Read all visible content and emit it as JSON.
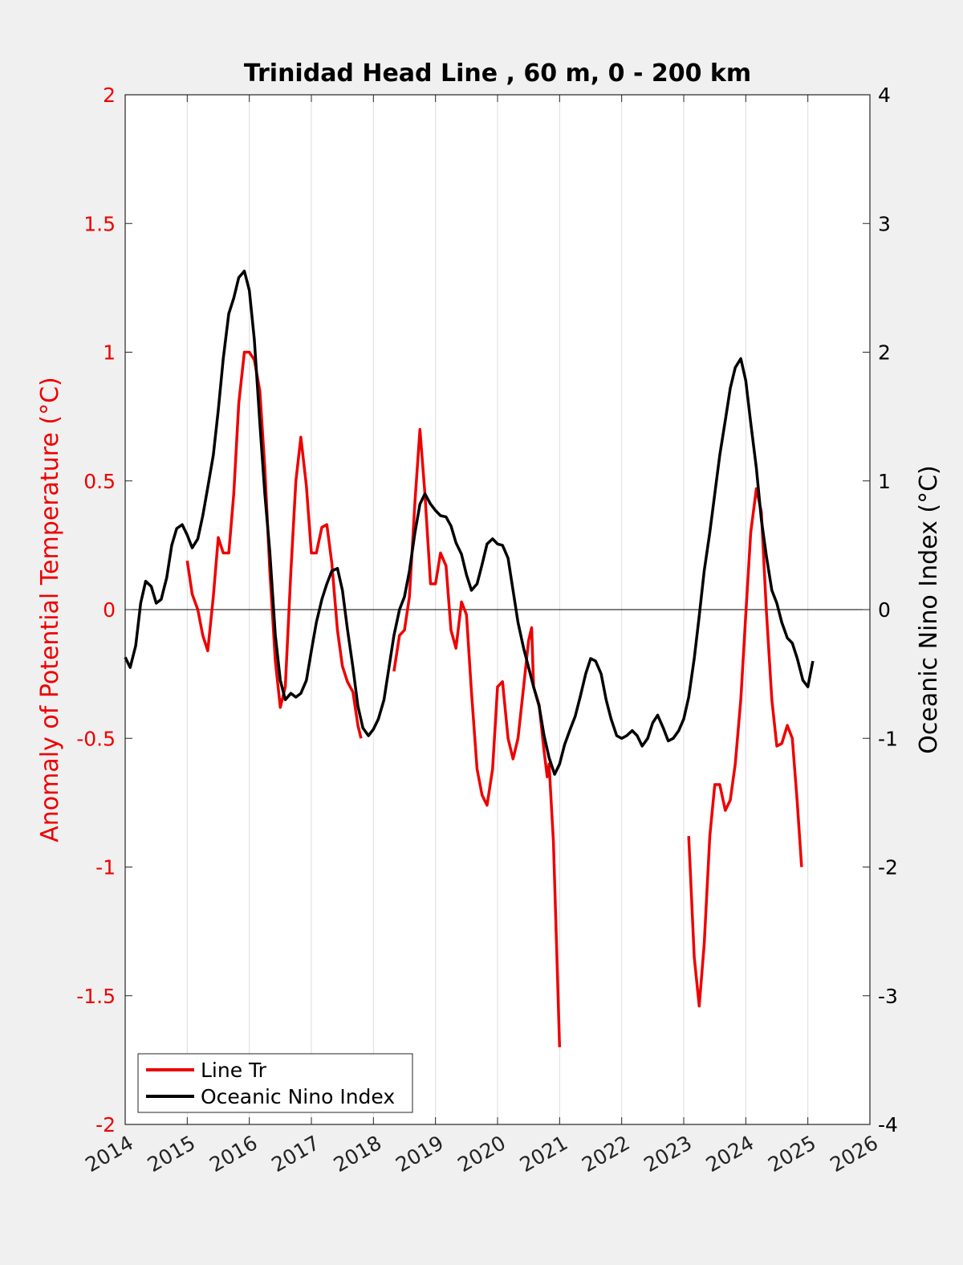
{
  "chart_data": {
    "type": "line",
    "title": "Trinidad Head Line , 60 m, 0 - 200 km",
    "x_range": [
      2014,
      2026
    ],
    "x_ticks": [
      "2014",
      "2015",
      "2016",
      "2017",
      "2018",
      "2019",
      "2020",
      "2021",
      "2022",
      "2023",
      "2024",
      "2025",
      "2026"
    ],
    "y_left": {
      "label": "Anomaly of Potential Temperature (°C)",
      "range": [
        -2,
        2
      ],
      "ticks": [
        "2",
        "1.5",
        "1",
        "0.5",
        "0",
        "-0.5",
        "-1",
        "-1.5",
        "-2"
      ],
      "color": "#ee0000"
    },
    "y_right": {
      "label": "Oceanic Nino Index (°C)",
      "range": [
        -4,
        4
      ],
      "ticks": [
        "4",
        "3",
        "2",
        "1",
        "0",
        "-1",
        "-2",
        "-3",
        "-4"
      ],
      "color": "#000000"
    },
    "grid": "vertical",
    "zero_line": true,
    "legend": {
      "position": "bottom-left",
      "entries": [
        {
          "label": "Line Tr",
          "color": "#ee0000"
        },
        {
          "label": "Oceanic Nino Index",
          "color": "#000000"
        }
      ]
    },
    "series": [
      {
        "name": "Line Tr",
        "axis": "left",
        "color": "#ee0000",
        "segments": [
          [
            [
              2015.0,
              0.19
            ],
            [
              2015.08,
              0.06
            ],
            [
              2015.17,
              0.0
            ],
            [
              2015.25,
              -0.1
            ],
            [
              2015.33,
              -0.16
            ],
            [
              2015.42,
              0.05
            ],
            [
              2015.5,
              0.28
            ],
            [
              2015.58,
              0.22
            ],
            [
              2015.67,
              0.22
            ],
            [
              2015.75,
              0.45
            ],
            [
              2015.83,
              0.8
            ],
            [
              2015.92,
              1.0
            ],
            [
              2016.0,
              1.0
            ],
            [
              2016.08,
              0.97
            ],
            [
              2016.17,
              0.85
            ],
            [
              2016.25,
              0.55
            ],
            [
              2016.33,
              0.15
            ],
            [
              2016.42,
              -0.2
            ],
            [
              2016.5,
              -0.38
            ],
            [
              2016.58,
              -0.3
            ],
            [
              2016.67,
              0.15
            ],
            [
              2016.75,
              0.5
            ],
            [
              2016.83,
              0.67
            ],
            [
              2016.92,
              0.48
            ],
            [
              2017.0,
              0.22
            ],
            [
              2017.08,
              0.22
            ],
            [
              2017.17,
              0.32
            ],
            [
              2017.25,
              0.33
            ],
            [
              2017.33,
              0.18
            ],
            [
              2017.42,
              -0.08
            ],
            [
              2017.5,
              -0.22
            ],
            [
              2017.58,
              -0.28
            ],
            [
              2017.67,
              -0.32
            ],
            [
              2017.75,
              -0.45
            ],
            [
              2017.8,
              -0.5
            ]
          ],
          [
            [
              2018.33,
              -0.24
            ],
            [
              2018.42,
              -0.1
            ],
            [
              2018.5,
              -0.08
            ],
            [
              2018.58,
              0.05
            ],
            [
              2018.67,
              0.42
            ],
            [
              2018.75,
              0.7
            ],
            [
              2018.83,
              0.45
            ],
            [
              2018.92,
              0.1
            ],
            [
              2019.0,
              0.1
            ],
            [
              2019.08,
              0.22
            ],
            [
              2019.17,
              0.17
            ],
            [
              2019.25,
              -0.08
            ],
            [
              2019.33,
              -0.15
            ],
            [
              2019.42,
              0.03
            ],
            [
              2019.5,
              -0.02
            ],
            [
              2019.58,
              -0.32
            ],
            [
              2019.67,
              -0.62
            ],
            [
              2019.75,
              -0.72
            ],
            [
              2019.83,
              -0.76
            ],
            [
              2019.92,
              -0.62
            ],
            [
              2020.0,
              -0.3
            ],
            [
              2020.08,
              -0.28
            ],
            [
              2020.17,
              -0.5
            ],
            [
              2020.25,
              -0.58
            ],
            [
              2020.33,
              -0.5
            ],
            [
              2020.42,
              -0.3
            ],
            [
              2020.5,
              -0.12
            ],
            [
              2020.55,
              -0.07
            ],
            [
              2020.58,
              -0.3
            ],
            [
              2020.67,
              -0.37
            ],
            [
              2020.75,
              -0.55
            ],
            [
              2020.8,
              -0.65
            ],
            [
              2020.83,
              -0.6
            ],
            [
              2020.9,
              -0.9
            ],
            [
              2020.95,
              -1.3
            ],
            [
              2021.0,
              -1.7
            ]
          ],
          [
            [
              2023.08,
              -0.88
            ],
            [
              2023.17,
              -1.35
            ],
            [
              2023.25,
              -1.54
            ],
            [
              2023.33,
              -1.3
            ],
            [
              2023.42,
              -0.88
            ],
            [
              2023.5,
              -0.68
            ],
            [
              2023.58,
              -0.68
            ],
            [
              2023.67,
              -0.78
            ],
            [
              2023.75,
              -0.74
            ],
            [
              2023.83,
              -0.6
            ],
            [
              2023.92,
              -0.35
            ],
            [
              2024.0,
              -0.02
            ],
            [
              2024.08,
              0.3
            ],
            [
              2024.17,
              0.47
            ],
            [
              2024.25,
              0.38
            ],
            [
              2024.33,
              0.0
            ],
            [
              2024.42,
              -0.35
            ],
            [
              2024.5,
              -0.53
            ],
            [
              2024.58,
              -0.52
            ],
            [
              2024.67,
              -0.45
            ],
            [
              2024.75,
              -0.5
            ],
            [
              2024.83,
              -0.75
            ],
            [
              2024.9,
              -1.0
            ]
          ]
        ]
      },
      {
        "name": "Oceanic Nino Index",
        "axis": "right",
        "color": "#000000",
        "segments": [
          [
            [
              2014.0,
              -0.37
            ],
            [
              2014.08,
              -0.45
            ],
            [
              2014.17,
              -0.28
            ],
            [
              2014.25,
              0.05
            ],
            [
              2014.33,
              0.22
            ],
            [
              2014.42,
              0.18
            ],
            [
              2014.5,
              0.05
            ],
            [
              2014.58,
              0.08
            ],
            [
              2014.67,
              0.25
            ],
            [
              2014.75,
              0.5
            ],
            [
              2014.83,
              0.63
            ],
            [
              2014.92,
              0.66
            ],
            [
              2015.0,
              0.58
            ],
            [
              2015.08,
              0.48
            ],
            [
              2015.17,
              0.55
            ],
            [
              2015.25,
              0.73
            ],
            [
              2015.33,
              0.95
            ],
            [
              2015.42,
              1.2
            ],
            [
              2015.5,
              1.55
            ],
            [
              2015.58,
              1.95
            ],
            [
              2015.67,
              2.3
            ],
            [
              2015.75,
              2.42
            ],
            [
              2015.83,
              2.58
            ],
            [
              2015.92,
              2.63
            ],
            [
              2016.0,
              2.48
            ],
            [
              2016.08,
              2.1
            ],
            [
              2016.17,
              1.45
            ],
            [
              2016.25,
              0.9
            ],
            [
              2016.33,
              0.45
            ],
            [
              2016.42,
              -0.2
            ],
            [
              2016.5,
              -0.55
            ],
            [
              2016.58,
              -0.7
            ],
            [
              2016.67,
              -0.65
            ],
            [
              2016.75,
              -0.68
            ],
            [
              2016.83,
              -0.65
            ],
            [
              2016.92,
              -0.55
            ],
            [
              2017.0,
              -0.32
            ],
            [
              2017.08,
              -0.1
            ],
            [
              2017.17,
              0.08
            ],
            [
              2017.25,
              0.2
            ],
            [
              2017.33,
              0.3
            ],
            [
              2017.42,
              0.32
            ],
            [
              2017.5,
              0.15
            ],
            [
              2017.58,
              -0.15
            ],
            [
              2017.67,
              -0.45
            ],
            [
              2017.75,
              -0.75
            ],
            [
              2017.83,
              -0.92
            ],
            [
              2017.92,
              -0.98
            ],
            [
              2018.0,
              -0.93
            ],
            [
              2018.08,
              -0.85
            ],
            [
              2018.17,
              -0.7
            ],
            [
              2018.25,
              -0.45
            ],
            [
              2018.33,
              -0.2
            ],
            [
              2018.42,
              0.0
            ],
            [
              2018.5,
              0.1
            ],
            [
              2018.58,
              0.3
            ],
            [
              2018.67,
              0.6
            ],
            [
              2018.75,
              0.82
            ],
            [
              2018.83,
              0.9
            ],
            [
              2018.92,
              0.82
            ],
            [
              2019.0,
              0.77
            ],
            [
              2019.08,
              0.73
            ],
            [
              2019.17,
              0.72
            ],
            [
              2019.25,
              0.65
            ],
            [
              2019.33,
              0.52
            ],
            [
              2019.42,
              0.43
            ],
            [
              2019.5,
              0.27
            ],
            [
              2019.58,
              0.15
            ],
            [
              2019.67,
              0.2
            ],
            [
              2019.75,
              0.35
            ],
            [
              2019.83,
              0.51
            ],
            [
              2019.92,
              0.55
            ],
            [
              2020.0,
              0.51
            ],
            [
              2020.08,
              0.5
            ],
            [
              2020.17,
              0.4
            ],
            [
              2020.25,
              0.15
            ],
            [
              2020.33,
              -0.1
            ],
            [
              2020.42,
              -0.3
            ],
            [
              2020.5,
              -0.45
            ],
            [
              2020.58,
              -0.6
            ],
            [
              2020.67,
              -0.75
            ],
            [
              2020.75,
              -0.98
            ],
            [
              2020.83,
              -1.15
            ],
            [
              2020.92,
              -1.28
            ],
            [
              2021.0,
              -1.2
            ],
            [
              2021.08,
              -1.05
            ],
            [
              2021.17,
              -0.93
            ],
            [
              2021.25,
              -0.83
            ],
            [
              2021.33,
              -0.68
            ],
            [
              2021.42,
              -0.5
            ],
            [
              2021.5,
              -0.38
            ],
            [
              2021.58,
              -0.4
            ],
            [
              2021.67,
              -0.5
            ],
            [
              2021.75,
              -0.7
            ],
            [
              2021.83,
              -0.85
            ],
            [
              2021.92,
              -0.98
            ],
            [
              2022.0,
              -1.0
            ],
            [
              2022.08,
              -0.98
            ],
            [
              2022.17,
              -0.94
            ],
            [
              2022.25,
              -0.98
            ],
            [
              2022.33,
              -1.06
            ],
            [
              2022.42,
              -1.0
            ],
            [
              2022.5,
              -0.88
            ],
            [
              2022.58,
              -0.82
            ],
            [
              2022.67,
              -0.92
            ],
            [
              2022.75,
              -1.02
            ],
            [
              2022.83,
              -1.0
            ],
            [
              2022.92,
              -0.94
            ],
            [
              2023.0,
              -0.85
            ],
            [
              2023.08,
              -0.68
            ],
            [
              2023.17,
              -0.38
            ],
            [
              2023.25,
              -0.05
            ],
            [
              2023.33,
              0.3
            ],
            [
              2023.42,
              0.6
            ],
            [
              2023.5,
              0.9
            ],
            [
              2023.58,
              1.2
            ],
            [
              2023.67,
              1.47
            ],
            [
              2023.75,
              1.72
            ],
            [
              2023.83,
              1.88
            ],
            [
              2023.92,
              1.95
            ],
            [
              2024.0,
              1.78
            ],
            [
              2024.08,
              1.45
            ],
            [
              2024.17,
              1.1
            ],
            [
              2024.25,
              0.7
            ],
            [
              2024.33,
              0.42
            ],
            [
              2024.42,
              0.15
            ],
            [
              2024.5,
              0.05
            ],
            [
              2024.58,
              -0.1
            ],
            [
              2024.67,
              -0.22
            ],
            [
              2024.75,
              -0.26
            ],
            [
              2024.83,
              -0.38
            ],
            [
              2024.92,
              -0.55
            ],
            [
              2025.0,
              -0.6
            ],
            [
              2025.08,
              -0.4
            ]
          ]
        ]
      }
    ]
  }
}
